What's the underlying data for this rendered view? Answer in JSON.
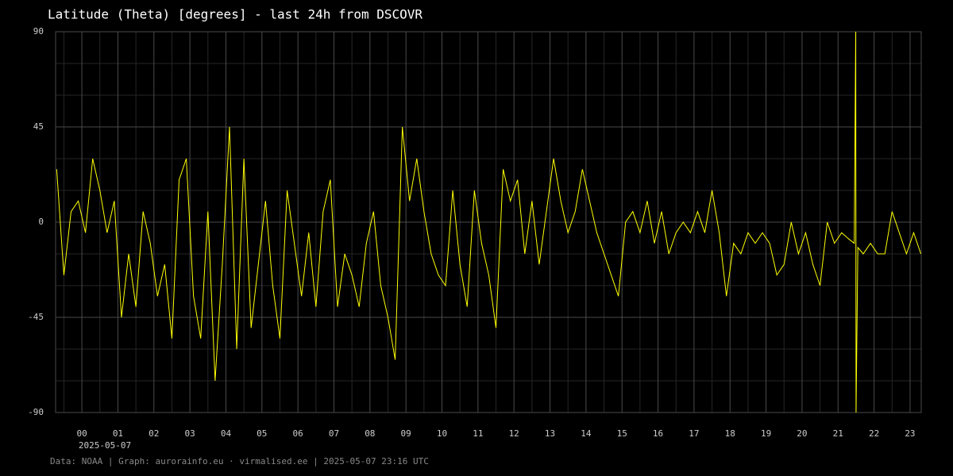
{
  "chart_data": {
    "type": "line",
    "title": "Latitude (Theta) [degrees] - last 24h from DSCOVR",
    "date_label": "2025-05-07",
    "footer": "Data: NOAA | Graph: aurorainfo.eu · virmalised.ee | 2025-05-07 23:16 UTC",
    "grid": true,
    "xlim": [
      -0.73,
      23.31
    ],
    "ylim": [
      -90,
      90
    ],
    "yticks": [
      90,
      45,
      0,
      -45,
      -90
    ],
    "xticks": [
      {
        "value": 0,
        "label": "00"
      },
      {
        "value": 1,
        "label": "01"
      },
      {
        "value": 2,
        "label": "02"
      },
      {
        "value": 3,
        "label": "03"
      },
      {
        "value": 4,
        "label": "04"
      },
      {
        "value": 5,
        "label": "05"
      },
      {
        "value": 6,
        "label": "06"
      },
      {
        "value": 7,
        "label": "07"
      },
      {
        "value": 8,
        "label": "08"
      },
      {
        "value": 9,
        "label": "09"
      },
      10,
      11,
      12,
      13,
      14,
      15,
      16,
      17,
      18,
      19,
      20,
      21,
      22,
      23
    ],
    "series": [
      {
        "color": "#ffff00",
        "x": [
          -0.7,
          -0.5,
          -0.3,
          -0.1,
          0.1,
          0.3,
          0.5,
          0.7,
          0.9,
          1.1,
          1.3,
          1.5,
          1.7,
          1.9,
          2.1,
          2.3,
          2.5,
          2.7,
          2.9,
          3.1,
          3.3,
          3.5,
          3.7,
          3.9,
          4.1,
          4.3,
          4.5,
          4.7,
          4.9,
          5.1,
          5.3,
          5.5,
          5.7,
          5.9,
          6.1,
          6.3,
          6.5,
          6.7,
          6.9,
          7.1,
          7.3,
          7.5,
          7.7,
          7.9,
          8.1,
          8.3,
          8.5,
          8.7,
          8.9,
          9.1,
          9.3,
          9.5,
          9.7,
          9.9,
          10.1,
          10.3,
          10.5,
          10.7,
          10.9,
          11.1,
          11.3,
          11.5,
          11.7,
          11.9,
          12.1,
          12.3,
          12.5,
          12.7,
          12.9,
          13.1,
          13.3,
          13.5,
          13.7,
          13.9,
          14.1,
          14.3,
          14.5,
          14.7,
          14.9,
          15.1,
          15.3,
          15.5,
          15.7,
          15.9,
          16.1,
          16.3,
          16.5,
          16.7,
          16.9,
          17.1,
          17.3,
          17.5,
          17.7,
          17.9,
          18.1,
          18.3,
          18.5,
          18.7,
          18.9,
          19.1,
          19.3,
          19.5,
          19.7,
          19.9,
          20.1,
          20.3,
          20.5,
          20.7,
          20.9,
          21.1,
          21.3,
          21.45,
          21.49,
          21.5,
          21.55,
          21.7,
          21.9,
          22.1,
          22.3,
          22.5,
          22.7,
          22.9,
          23.1,
          23.3
        ],
        "values": [
          25,
          -25,
          5,
          10,
          -5,
          30,
          15,
          -5,
          10,
          -45,
          -15,
          -40,
          5,
          -10,
          -35,
          -20,
          -55,
          20,
          30,
          -35,
          -55,
          5,
          -75,
          -20,
          45,
          -60,
          30,
          -50,
          -20,
          10,
          -30,
          -55,
          15,
          -10,
          -35,
          -5,
          -40,
          5,
          20,
          -40,
          -15,
          -25,
          -40,
          -10,
          5,
          -30,
          -45,
          -65,
          45,
          10,
          30,
          5,
          -15,
          -25,
          -30,
          15,
          -20,
          -40,
          15,
          -10,
          -25,
          -50,
          25,
          10,
          20,
          -15,
          10,
          -20,
          5,
          30,
          10,
          -5,
          5,
          25,
          10,
          -5,
          -15,
          -25,
          -35,
          0,
          5,
          -5,
          10,
          -10,
          5,
          -15,
          -5,
          0,
          -5,
          5,
          -5,
          15,
          -5,
          -35,
          -10,
          -15,
          -5,
          -10,
          -5,
          -10,
          -25,
          -20,
          0,
          -15,
          -5,
          -20,
          -30,
          0,
          -10,
          -5,
          -8,
          -10,
          90,
          -90,
          -12,
          -15,
          -10,
          -15,
          -15,
          5,
          -5,
          -15,
          -5,
          -15
        ]
      }
    ]
  }
}
